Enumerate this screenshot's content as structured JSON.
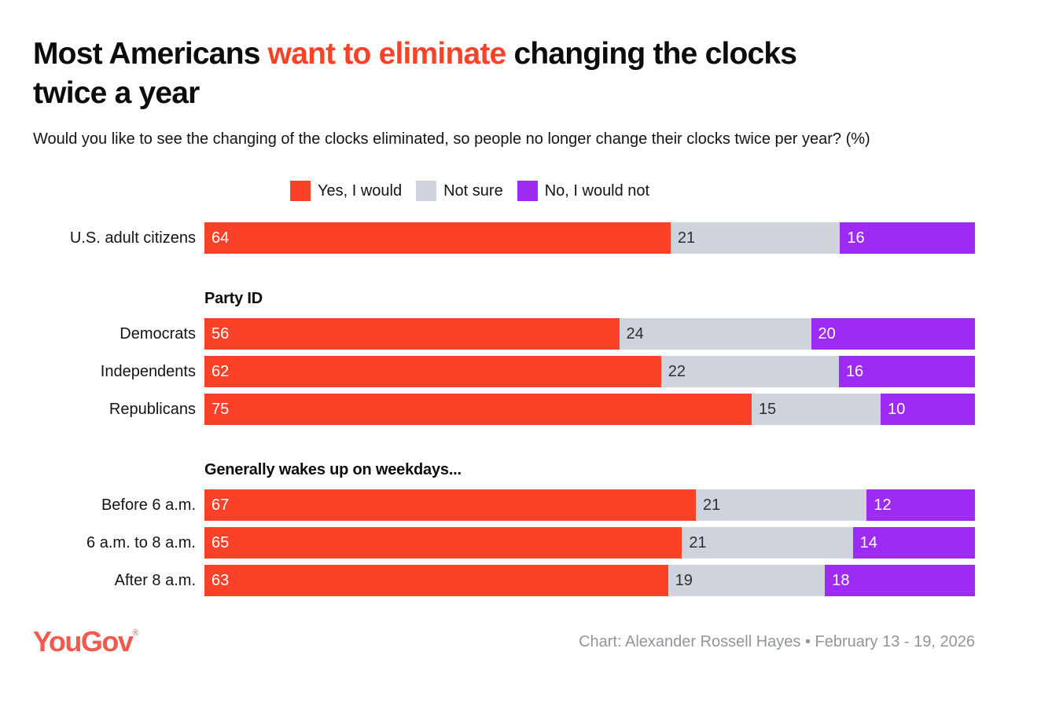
{
  "header": {
    "title_pre": "Most Americans ",
    "title_highlight": "want to eliminate",
    "title_post": " changing the clocks",
    "title_line2": "twice a year",
    "subtitle": "Would you like to see the changing of the clocks eliminated, so people no longer change their clocks twice per year? (%)"
  },
  "chart_data": {
    "type": "bar",
    "orientation": "horizontal",
    "stacked": true,
    "unit": "%",
    "x_range": [
      0,
      100
    ],
    "grid": false,
    "legend_position": "top",
    "series": [
      {
        "name": "Yes, I would",
        "color": "#FB4128",
        "label_color": "#FFFFFF"
      },
      {
        "name": "Not sure",
        "color": "#CED3DC",
        "label_color": "#2F2F2F"
      },
      {
        "name": "No, I would not",
        "color": "#9E2BF3",
        "label_color": "#FFFFFF"
      }
    ],
    "groups": [
      {
        "header": "",
        "rows": [
          {
            "label": "U.S. adult citizens",
            "values": [
              64,
              21,
              16
            ]
          }
        ]
      },
      {
        "header": "Party ID",
        "rows": [
          {
            "label": "Democrats",
            "values": [
              56,
              24,
              20
            ]
          },
          {
            "label": "Independents",
            "values": [
              62,
              22,
              16
            ]
          },
          {
            "label": "Republicans",
            "values": [
              75,
              15,
              10
            ]
          }
        ]
      },
      {
        "header": "Generally wakes up on weekdays...",
        "rows": [
          {
            "label": "Before 6 a.m.",
            "values": [
              67,
              21,
              12
            ]
          },
          {
            "label": "6 a.m. to 8 a.m.",
            "values": [
              65,
              21,
              14
            ]
          },
          {
            "label": "After 8 a.m.",
            "values": [
              63,
              19,
              18
            ]
          }
        ]
      }
    ]
  },
  "footer": {
    "logo_text": "YouGov",
    "logo_registered": "®",
    "attribution": "Chart: Alexander Rossell Hayes • February 13 - 19, 2026"
  },
  "colors": {
    "title_highlight": "#FB4128",
    "logo": "#F4594E",
    "attribution": "#919699"
  }
}
